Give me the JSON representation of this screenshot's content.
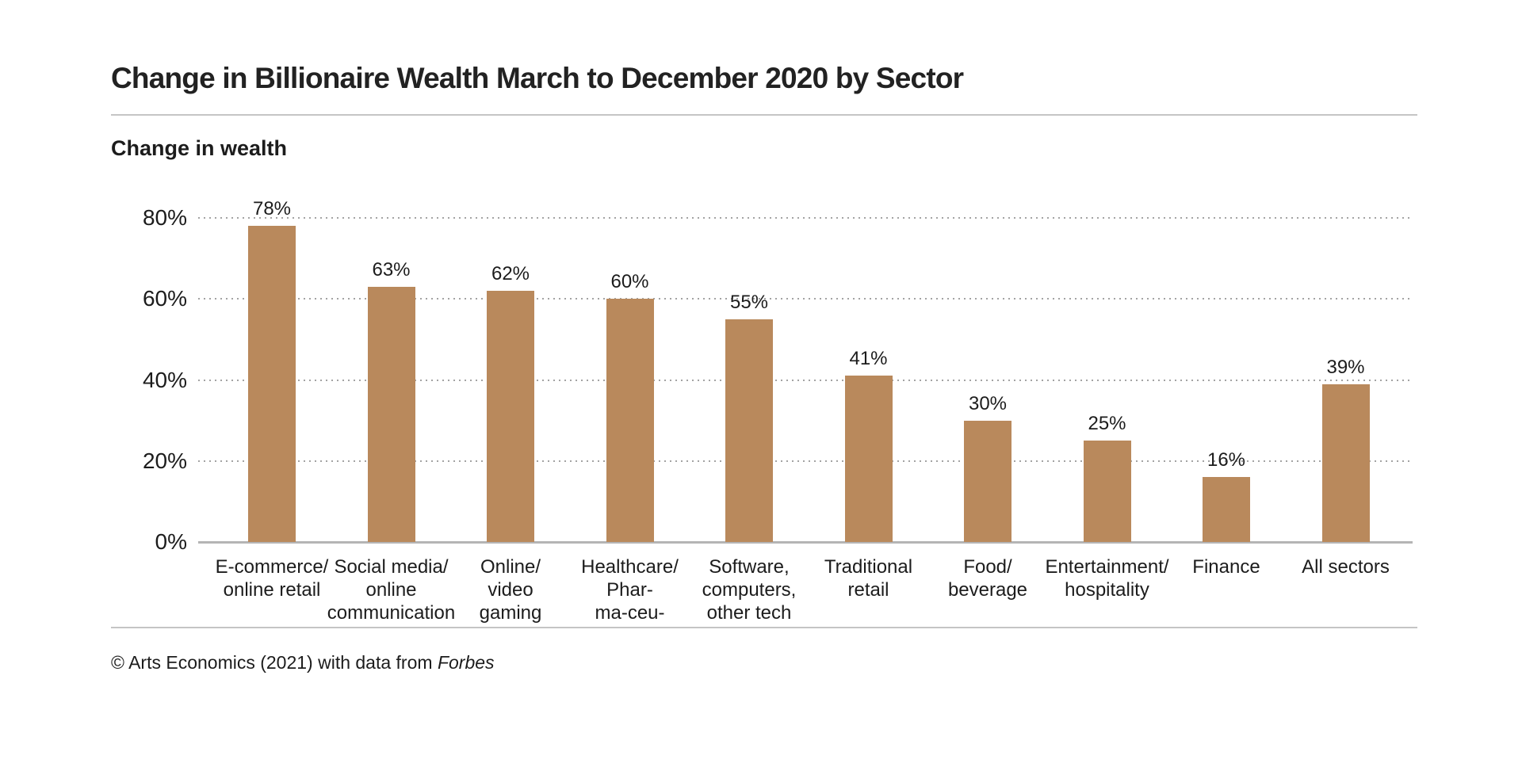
{
  "page": {
    "title": "Change in Billionaire Wealth March to December 2020 by Sector",
    "subtitle": "Change in wealth",
    "footer_prefix": "© Arts Economics (2021) with data from ",
    "footer_source": "Forbes"
  },
  "chart_data": {
    "type": "bar",
    "title": "Change in Billionaire Wealth March to December 2020 by Sector",
    "ylabel": "Change in wealth",
    "categories": [
      [
        "E-commerce/",
        "online retail"
      ],
      [
        "Social media/",
        "online",
        "communication"
      ],
      [
        "Online/",
        "video",
        "gaming"
      ],
      [
        "Healthcare/",
        "Phar-",
        "ma-ceu-"
      ],
      [
        "Software,",
        "computers,",
        "other tech"
      ],
      [
        "Traditional",
        "retail"
      ],
      [
        "Food/",
        "beverage"
      ],
      [
        "Entertainment/",
        "hospitality"
      ],
      [
        "Finance"
      ],
      [
        "All sectors"
      ]
    ],
    "values": [
      78,
      63,
      62,
      60,
      55,
      41,
      30,
      25,
      16,
      39
    ],
    "value_labels": [
      "78%",
      "63%",
      "62%",
      "60%",
      "55%",
      "41%",
      "30%",
      "25%",
      "16%",
      "39%"
    ],
    "y_tick_values": [
      0,
      20,
      40,
      60,
      80
    ],
    "y_tick_labels": [
      "0%",
      "20%",
      "40%",
      "60%",
      "80%"
    ],
    "ylim": [
      0,
      80
    ],
    "grid": "dotted-horizontal",
    "legend": "none",
    "bar_color": "#b9895c",
    "source_note": "© Arts Economics (2021) with data from Forbes"
  }
}
